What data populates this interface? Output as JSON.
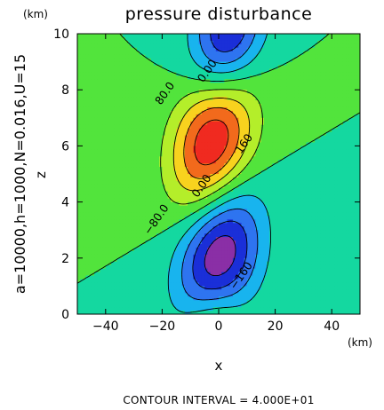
{
  "chart_data": {
    "type": "heatmap",
    "title": "pressure disturbance",
    "xlabel": "x",
    "ylabel": "z",
    "x_unit": "(km)",
    "y_unit": "(km)",
    "xlim": [
      -50,
      50
    ],
    "ylim": [
      0,
      10
    ],
    "x_ticks": [
      -40,
      -20,
      0,
      20,
      40
    ],
    "y_ticks": [
      0,
      2,
      4,
      6,
      8,
      10
    ],
    "parameters": "a=10000,h=1000,N=0.016,U=15",
    "contour_interval_text": "CONTOUR INTERVAL = 4.000E+01",
    "contour_interval": 40,
    "contour_labels": [
      {
        "text": "80.0",
        "x": -18,
        "z": 7.8
      },
      {
        "text": "0.00",
        "x": -3,
        "z": 8.6
      },
      {
        "text": "160",
        "x": 10,
        "z": 6.0
      },
      {
        "text": "0.00",
        "x": -5,
        "z": 4.5
      },
      {
        "text": "−80.0",
        "x": -21,
        "z": 3.3
      },
      {
        "text": "−160",
        "x": 9,
        "z": 1.3
      }
    ],
    "field_extrema": [
      {
        "kind": "max",
        "x": -2,
        "z": 6.2,
        "value": 200
      },
      {
        "kind": "min",
        "x": 0,
        "z": 2.0,
        "value": -200
      },
      {
        "kind": "min",
        "x": 3,
        "z": 9.9,
        "value": -170
      }
    ],
    "colors": {
      "below_-160": "#8a2fa6",
      "-160_to_-120": "#1a2fd8",
      "-120_to_-80": "#2e74f0",
      "-80_to_-40": "#18b4ee",
      "-40_to_0": "#14d8a0",
      "0_to_40": "#52e43c",
      "40_to_80": "#b4ee2a",
      "80_to_120": "#f8d21e",
      "120_to_160": "#f26a1c",
      "160_to_200": "#f02a20",
      "above_200": "#f29ab4"
    }
  }
}
